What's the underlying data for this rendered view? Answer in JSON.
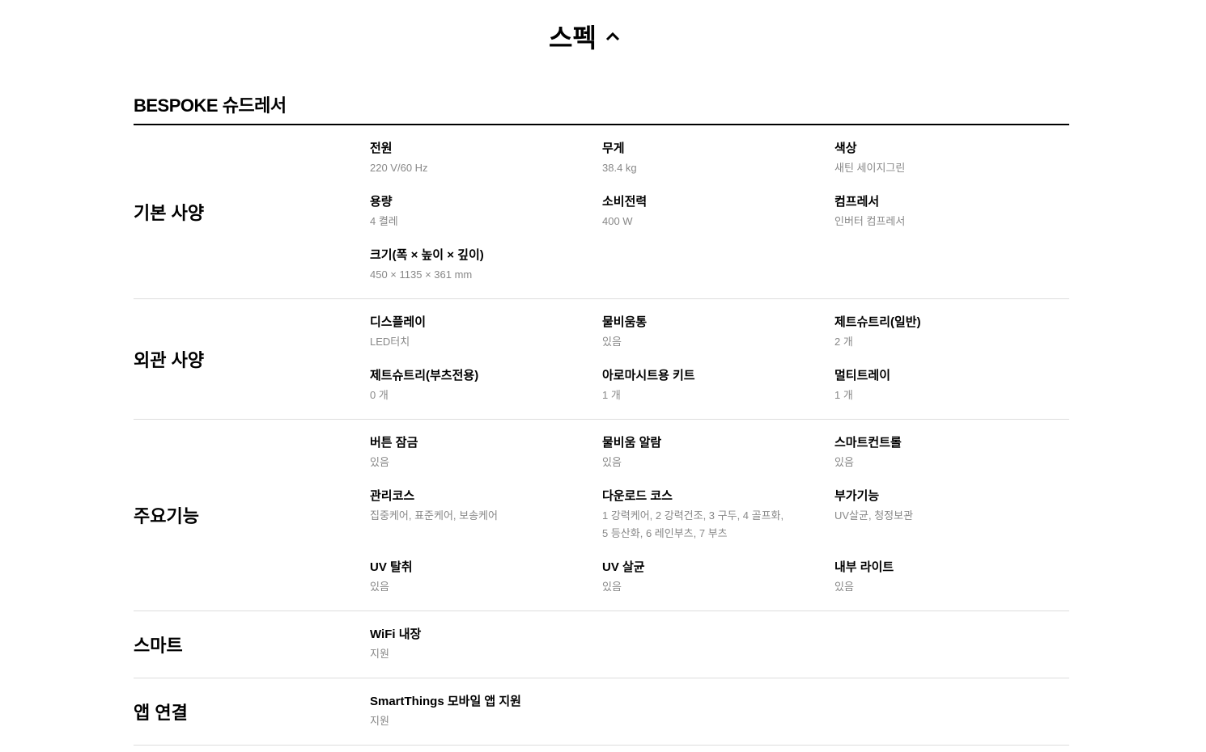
{
  "header": {
    "title": "스펙",
    "toggle_icon": "chevron-up-icon"
  },
  "product_name": "BESPOKE 슈드레서",
  "sections": [
    {
      "title": "기본 사양",
      "items": [
        {
          "label": "전원",
          "value": "220 V/60 Hz"
        },
        {
          "label": "무게",
          "value": "38.4 kg"
        },
        {
          "label": "색상",
          "value": "새틴 세이지그린"
        },
        {
          "label": "용량",
          "value": "4 켤레"
        },
        {
          "label": "소비전력",
          "value": "400 W"
        },
        {
          "label": "컴프레서",
          "value": "인버터 컴프레서"
        },
        {
          "label": "크기(폭 × 높이 × 깊이)",
          "value": "450 × 1135 × 361 mm"
        }
      ]
    },
    {
      "title": "외관 사양",
      "items": [
        {
          "label": "디스플레이",
          "value": "LED터치"
        },
        {
          "label": "물비움통",
          "value": "있음"
        },
        {
          "label": "제트슈트리(일반)",
          "value": "2 개"
        },
        {
          "label": "제트슈트리(부츠전용)",
          "value": "0 개"
        },
        {
          "label": "아로마시트용 키트",
          "value": "1 개"
        },
        {
          "label": "멀티트레이",
          "value": "1 개"
        }
      ]
    },
    {
      "title": "주요기능",
      "items": [
        {
          "label": "버튼 잠금",
          "value": "있음"
        },
        {
          "label": "물비움 알람",
          "value": "있음"
        },
        {
          "label": "스마트컨트롤",
          "value": "있음"
        },
        {
          "label": "관리코스",
          "value": "집중케어, 표준케어, 보송케어"
        },
        {
          "label": "다운로드 코스",
          "value": "1 강력케어, 2 강력건조, 3 구두, 4 골프화, 5 등산화, 6 레인부츠, 7 부츠"
        },
        {
          "label": "부가기능",
          "value": "UV살균, 청정보관"
        },
        {
          "label": "UV 탈취",
          "value": "있음"
        },
        {
          "label": "UV 살균",
          "value": "있음"
        },
        {
          "label": "내부 라이트",
          "value": "있음"
        }
      ]
    },
    {
      "title": "스마트",
      "items": [
        {
          "label": "WiFi 내장",
          "value": "지원"
        }
      ]
    },
    {
      "title": "앱 연결",
      "items": [
        {
          "label": "SmartThings 모바일 앱 지원",
          "value": "지원"
        }
      ]
    }
  ]
}
